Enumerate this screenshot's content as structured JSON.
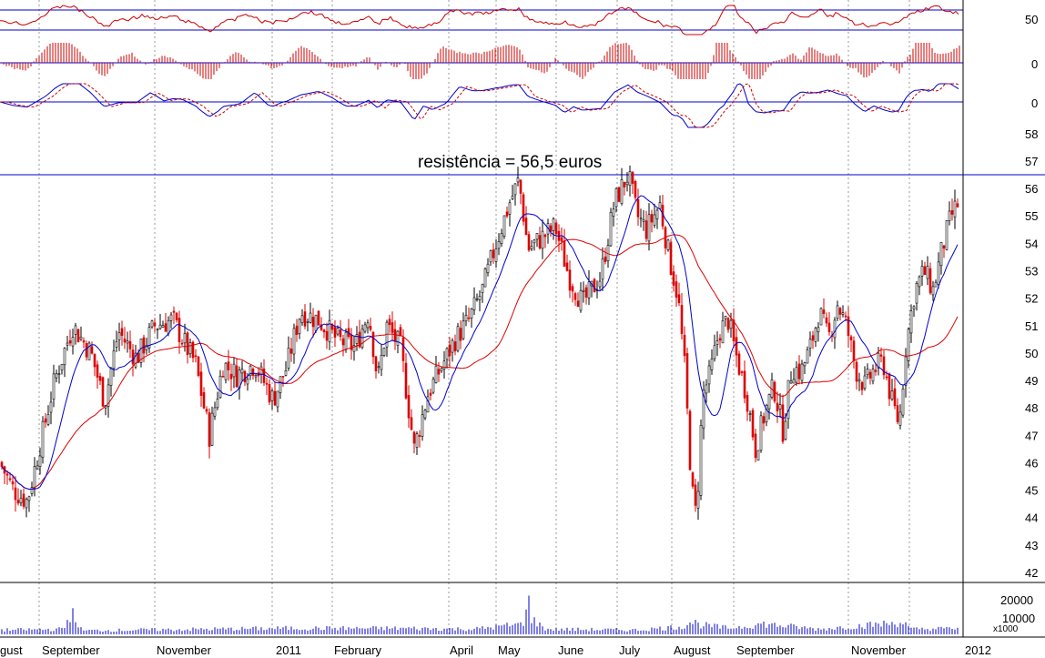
{
  "chart_data": {
    "type": "candlestick",
    "annotation": "resistência = 56,5 euros",
    "resistance_level": 56.5,
    "price_axis": {
      "ticks": [
        42,
        43,
        44,
        45,
        46,
        47,
        48,
        49,
        50,
        51,
        52,
        53,
        54,
        55,
        56,
        57,
        58
      ],
      "range": [
        41.5,
        58.3
      ]
    },
    "oscillator_panel_1": {
      "ticks": [
        "50"
      ],
      "series_color": "#cc0000"
    },
    "oscillator_panel_2": {
      "ticks": [
        "0"
      ],
      "series_color": "#cc0000"
    },
    "oscillator_panel_3": {
      "ticks": [
        "0"
      ],
      "series_colors": [
        "#0000cc",
        "#cc0000"
      ]
    },
    "volume_axis": {
      "ticks": [
        "20000",
        "10000"
      ],
      "unit": "x1000"
    },
    "x_labels": [
      "gust",
      "September",
      "November",
      "2011",
      "February",
      "April",
      "May",
      "June",
      "July",
      "August",
      "September",
      "November",
      "2012"
    ],
    "colors": {
      "up": "#000000",
      "down": "#dd0000",
      "ma_short": "#0000cc",
      "ma_long": "#dd0000",
      "resistance": "#0000cc",
      "volume": "#0000cc",
      "grid": "#9a9a9a"
    },
    "price_path": [
      [
        0,
        46.0
      ],
      [
        15,
        45.0
      ],
      [
        30,
        44.6
      ],
      [
        45,
        46.8
      ],
      [
        60,
        49.0
      ],
      [
        80,
        51.0
      ],
      [
        100,
        50.0
      ],
      [
        115,
        48.2
      ],
      [
        130,
        50.8
      ],
      [
        150,
        49.8
      ],
      [
        170,
        51.0
      ],
      [
        190,
        51.2
      ],
      [
        205,
        50.2
      ],
      [
        215,
        49.6
      ],
      [
        230,
        47.0
      ],
      [
        245,
        49.6
      ],
      [
        260,
        49.2
      ],
      [
        280,
        49.6
      ],
      [
        300,
        48.3
      ],
      [
        315,
        49.5
      ],
      [
        330,
        51.5
      ],
      [
        350,
        51.2
      ],
      [
        370,
        50.5
      ],
      [
        390,
        50.2
      ],
      [
        405,
        51.5
      ],
      [
        415,
        49.0
      ],
      [
        425,
        51.0
      ],
      [
        440,
        50.2
      ],
      [
        455,
        46.5
      ],
      [
        470,
        48.5
      ],
      [
        485,
        49.5
      ],
      [
        500,
        50.5
      ],
      [
        515,
        51.2
      ],
      [
        530,
        52.3
      ],
      [
        545,
        54.0
      ],
      [
        560,
        55.5
      ],
      [
        570,
        56.3
      ],
      [
        580,
        53.8
      ],
      [
        595,
        54.2
      ],
      [
        610,
        54.6
      ],
      [
        625,
        52.8
      ],
      [
        640,
        51.8
      ],
      [
        660,
        52.8
      ],
      [
        675,
        55.5
      ],
      [
        690,
        56.5
      ],
      [
        700,
        55.0
      ],
      [
        710,
        54.5
      ],
      [
        725,
        55.4
      ],
      [
        735,
        53.5
      ],
      [
        745,
        52.0
      ],
      [
        752,
        49.5
      ],
      [
        760,
        45.0
      ],
      [
        765,
        44.0
      ],
      [
        772,
        48.5
      ],
      [
        780,
        49.2
      ],
      [
        790,
        50.8
      ],
      [
        800,
        51.2
      ],
      [
        808,
        50.0
      ],
      [
        820,
        48.5
      ],
      [
        830,
        46.5
      ],
      [
        840,
        47.8
      ],
      [
        850,
        48.8
      ],
      [
        860,
        47.2
      ],
      [
        870,
        49.5
      ],
      [
        880,
        49.3
      ],
      [
        890,
        50.2
      ],
      [
        900,
        51.5
      ],
      [
        910,
        50.5
      ],
      [
        920,
        51.8
      ],
      [
        930,
        51.0
      ],
      [
        940,
        49.4
      ],
      [
        950,
        48.8
      ],
      [
        960,
        49.4
      ],
      [
        970,
        49.7
      ],
      [
        980,
        48.2
      ],
      [
        988,
        47.4
      ],
      [
        995,
        50.2
      ],
      [
        1005,
        52.3
      ],
      [
        1015,
        53.0
      ],
      [
        1025,
        52.3
      ],
      [
        1035,
        53.8
      ],
      [
        1045,
        55.0
      ],
      [
        1055,
        55.6
      ]
    ],
    "volume_profile": [
      [
        0,
        0.25
      ],
      [
        70,
        0.3
      ],
      [
        78,
        1.3
      ],
      [
        90,
        0.22
      ],
      [
        230,
        0.3
      ],
      [
        310,
        0.35
      ],
      [
        450,
        0.35
      ],
      [
        520,
        0.3
      ],
      [
        575,
        0.6
      ],
      [
        579,
        2.7
      ],
      [
        583,
        0.9
      ],
      [
        600,
        0.3
      ],
      [
        700,
        0.25
      ],
      [
        750,
        0.45
      ],
      [
        760,
        0.75
      ],
      [
        770,
        0.55
      ],
      [
        800,
        0.35
      ],
      [
        838,
        0.6
      ],
      [
        900,
        0.3
      ],
      [
        993,
        0.7
      ],
      [
        1000,
        0.3
      ],
      [
        1055,
        0.35
      ]
    ]
  }
}
